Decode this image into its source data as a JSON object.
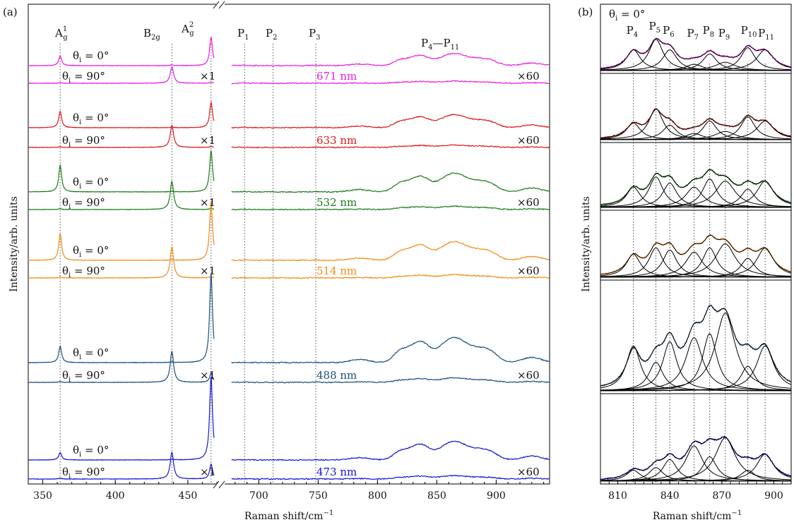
{
  "panels": {
    "a": {
      "label": "(a)",
      "xlabel": "Raman shift/cm",
      "xlabel_sup": "−1",
      "ylabel": "Intensity/arb. units",
      "left_ticks": [
        "350",
        "400",
        "450"
      ],
      "right_ticks": [
        "700",
        "750",
        "800",
        "850",
        "900"
      ],
      "peak_labels": [
        {
          "id": "Ag1",
          "base": "A",
          "sub": "g",
          "sup": "1"
        },
        {
          "id": "B2g",
          "base": "B",
          "sub": "2g",
          "sup": ""
        },
        {
          "id": "Ag2",
          "base": "A",
          "sub": "g",
          "sup": "2"
        },
        {
          "id": "P1",
          "base": "P",
          "sub": "1",
          "sup": ""
        },
        {
          "id": "P2",
          "base": "P",
          "sub": "2",
          "sup": ""
        },
        {
          "id": "P3",
          "base": "P",
          "sub": "3",
          "sup": ""
        },
        {
          "id": "P4P11",
          "base": "P",
          "sub": "4",
          "sup": "",
          "suffix": "—P",
          "sub2": "11"
        }
      ],
      "theta0_label": "θ",
      "theta0_sub": "i",
      "theta0_value": " = 0°",
      "theta90_value": " = 90°",
      "mult_left": "×1",
      "mult_right": "×60"
    },
    "b": {
      "label": "(b)",
      "xlabel": "Raman shift/cm",
      "xlabel_sup": "−1",
      "ylabel": "Intensity/arb. units",
      "ticks": [
        "810",
        "840",
        "870",
        "900"
      ],
      "theta_label": "θ",
      "theta_sub": "i",
      "theta_value": " = 0°",
      "peak_labels": [
        "4",
        "5",
        "6",
        "7",
        "8",
        "9",
        "10",
        "11"
      ],
      "peak_prefix": "P"
    }
  },
  "chart_data": [
    {
      "type": "line",
      "panel": "a",
      "xlabel": "Raman shift/cm⁻¹",
      "ylabel": "Intensity/arb. units",
      "x_segments": [
        [
          340,
          470
        ],
        [
          670,
          945
        ]
      ],
      "axis_break": true,
      "peaks_cm": {
        "Ag1": 362,
        "B2g": 439,
        "Ag2": 466,
        "P1": 688,
        "P2": 712,
        "P3": 748
      },
      "series": [
        {
          "name": "671 nm",
          "color": "#e81ce2",
          "parallel_peaks": [
            0.32,
            0.02,
            0.95
          ],
          "cross_peaks": [
            0.02,
            0.55,
            0.03
          ],
          "broad_scale": 0.65
        },
        {
          "name": "633 nm",
          "color": "#e0181c",
          "parallel_peaks": [
            0.55,
            0.02,
            0.85
          ],
          "cross_peaks": [
            0.02,
            0.75,
            0.03
          ],
          "broad_scale": 0.7
        },
        {
          "name": "532 nm",
          "color": "#1b7d1b",
          "parallel_peaks": [
            0.9,
            0.02,
            1.4
          ],
          "cross_peaks": [
            0.03,
            0.95,
            0.04
          ],
          "broad_scale": 1.0
        },
        {
          "name": "514 nm",
          "color": "#f28a14",
          "parallel_peaks": [
            0.9,
            0.02,
            2.0
          ],
          "cross_peaks": [
            0.03,
            1.05,
            0.05
          ],
          "broad_scale": 1.0
        },
        {
          "name": "488 nm",
          "color": "#1b4f7c",
          "parallel_peaks": [
            0.55,
            0.02,
            3.0
          ],
          "cross_peaks": [
            0.03,
            1.05,
            0.3
          ],
          "broad_scale": 1.35
        },
        {
          "name": "473 nm",
          "color": "#1414d8",
          "parallel_peaks": [
            0.25,
            0.02,
            2.8
          ],
          "cross_peaks": [
            0.03,
            0.9,
            0.5
          ],
          "broad_scale": 1.0
        }
      ]
    },
    {
      "type": "line",
      "panel": "b",
      "xlabel": "Raman shift/cm⁻¹",
      "ylabel": "Intensity/arb. units",
      "xlim": [
        800,
        910
      ],
      "peaks_cm": [
        819,
        832,
        840,
        854,
        863,
        872,
        885,
        895
      ],
      "series": [
        {
          "name": "671 nm",
          "color": "#e81ce2",
          "amps": [
            0.5,
            0.75,
            0.5,
            0.15,
            0.4,
            0.2,
            0.55,
            0.5
          ]
        },
        {
          "name": "633 nm",
          "color": "#e0181c",
          "amps": [
            0.4,
            0.75,
            0.35,
            0.15,
            0.45,
            0.2,
            0.55,
            0.45
          ]
        },
        {
          "name": "532 nm",
          "color": "#1b7d1b",
          "amps": [
            0.5,
            0.75,
            0.6,
            0.5,
            0.7,
            0.65,
            0.45,
            0.65
          ]
        },
        {
          "name": "514 nm",
          "color": "#f28a14",
          "amps": [
            0.55,
            0.7,
            0.65,
            0.6,
            0.7,
            0.8,
            0.45,
            0.7
          ]
        },
        {
          "name": "488 nm",
          "color": "#1b4f7c",
          "amps": [
            0.55,
            0.35,
            0.6,
            0.65,
            0.7,
            0.95,
            0.3,
            0.55
          ]
        },
        {
          "name": "473 nm",
          "color": "#1414d8",
          "amps": [
            0.2,
            0.25,
            0.4,
            0.65,
            0.45,
            0.8,
            0.2,
            0.5
          ]
        }
      ]
    }
  ]
}
